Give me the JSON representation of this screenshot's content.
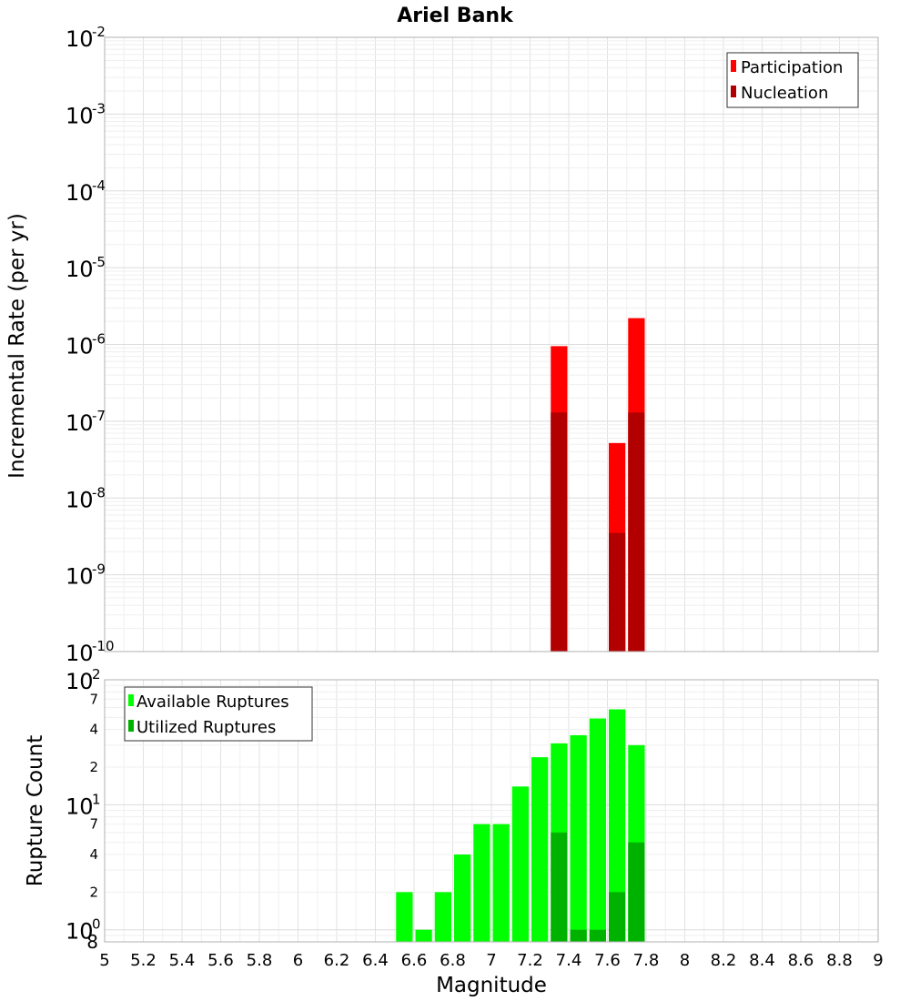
{
  "chart_data": {
    "title": "Ariel Bank",
    "xlabel": "Magnitude",
    "xlim": [
      5,
      9
    ],
    "x_ticks": [
      "5",
      "5.2",
      "5.4",
      "5.6",
      "5.8",
      "6",
      "6.2",
      "6.4",
      "6.6",
      "6.8",
      "7",
      "7.2",
      "7.4",
      "7.6",
      "7.8",
      "8",
      "8.2",
      "8.4",
      "8.6",
      "8.8",
      "9"
    ],
    "bin_width": 0.1,
    "panels": [
      {
        "type": "bar",
        "ylabel": "Incremental Rate (per yr)",
        "yscale": "log",
        "ylim": [
          1e-10,
          0.01
        ],
        "grid": true,
        "legend_position": "top-right",
        "y_tick_labels": [
          {
            "base": "10",
            "exp": "-10"
          },
          {
            "base": "10",
            "exp": "-9"
          },
          {
            "base": "10",
            "exp": "-8"
          },
          {
            "base": "10",
            "exp": "-7"
          },
          {
            "base": "10",
            "exp": "-6"
          },
          {
            "base": "10",
            "exp": "-5"
          },
          {
            "base": "10",
            "exp": "-4"
          },
          {
            "base": "10",
            "exp": "-3"
          },
          {
            "base": "10",
            "exp": "-2"
          }
        ],
        "series": [
          {
            "name": "Participation",
            "color": "#ff0000",
            "x": [
              7.35,
              7.65,
              7.75
            ],
            "values": [
              9.5e-07,
              5.2e-08,
              2.2e-06
            ]
          },
          {
            "name": "Nucleation",
            "color": "#b20000",
            "x": [
              7.35,
              7.65,
              7.75
            ],
            "values": [
              1.3e-07,
              3.5e-09,
              1.3e-07
            ]
          }
        ]
      },
      {
        "type": "bar",
        "ylabel": "Rupture Count",
        "yscale": "log",
        "ylim": [
          0.8,
          100
        ],
        "grid": true,
        "legend_position": "top-left",
        "y_tick_labels": [
          {
            "base": "10",
            "exp": "0"
          },
          {
            "base": "10",
            "exp": "1"
          },
          {
            "base": "10",
            "exp": "2"
          }
        ],
        "y_minor_labels": [
          {
            "value": 0.8,
            "label": "8"
          },
          {
            "value": 2,
            "label": "2"
          },
          {
            "value": 4,
            "label": "4"
          },
          {
            "value": 7,
            "label": "7"
          },
          {
            "value": 20,
            "label": "2"
          },
          {
            "value": 40,
            "label": "4"
          },
          {
            "value": 70,
            "label": "7"
          }
        ],
        "series": [
          {
            "name": "Available Ruptures",
            "color": "#00ff00",
            "x": [
              6.55,
              6.65,
              6.75,
              6.85,
              6.95,
              7.05,
              7.15,
              7.25,
              7.35,
              7.45,
              7.55,
              7.65,
              7.75
            ],
            "values": [
              2,
              1,
              2,
              4,
              7,
              7,
              14,
              24,
              31,
              36,
              49,
              58,
              30
            ]
          },
          {
            "name": "Utilized Ruptures",
            "color": "#00b200",
            "x": [
              7.35,
              7.45,
              7.55,
              7.65,
              7.75
            ],
            "values": [
              6,
              1,
              1,
              2,
              5
            ]
          }
        ]
      }
    ]
  }
}
